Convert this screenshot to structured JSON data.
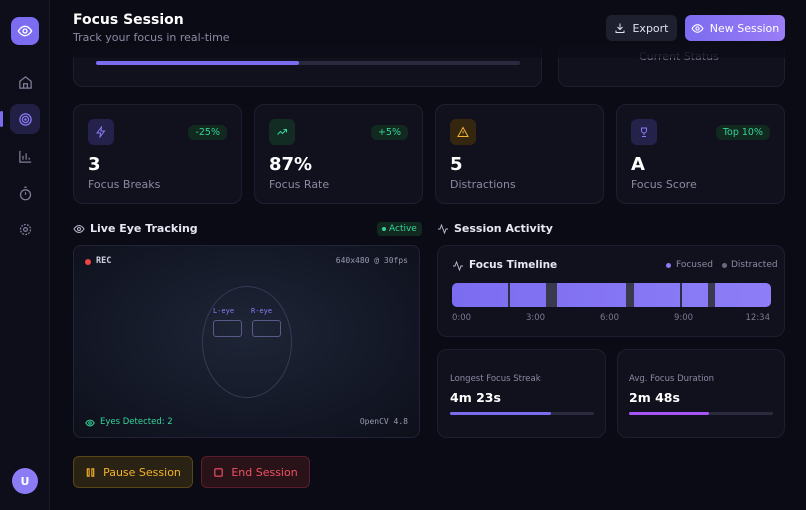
{
  "sidebar": {
    "avatar": "U"
  },
  "header": {
    "title": "Focus Session",
    "subtitle": "Track your focus in real-time",
    "buttons": [
      "Export",
      "New Session"
    ]
  },
  "top_cards": {
    "status_label": "Current Status"
  },
  "stats": [
    {
      "value": "3",
      "label": "Focus Breaks",
      "badge": "-25%"
    },
    {
      "value": "87%",
      "label": "Focus Rate",
      "badge": "+5%"
    },
    {
      "value": "5",
      "label": "Distractions"
    },
    {
      "value": "A",
      "label": "Focus Score",
      "badge": "Top 10%"
    }
  ],
  "eye_tracking": {
    "title": "Live Eye Tracking",
    "status": "Active",
    "rec": "REC",
    "resolution": "640x480 @ 30fps",
    "left_eye": "L-eye",
    "right_eye": "R-eye",
    "detected": "Eyes Detected: 2",
    "engine": "OpenCV 4.8"
  },
  "activity": {
    "title": "Session Activity",
    "timeline": {
      "title": "Focus Timeline",
      "legend": [
        "Focused",
        "Distracted"
      ],
      "ticks": [
        "0:00",
        "3:00",
        "6:00",
        "9:00",
        "12:34"
      ]
    },
    "metrics": [
      {
        "label": "Longest Focus Streak",
        "value": "4m 23s"
      },
      {
        "label": "Avg. Focus Duration",
        "value": "2m 48s"
      }
    ]
  },
  "controls": [
    "Pause Session",
    "End Session"
  ]
}
